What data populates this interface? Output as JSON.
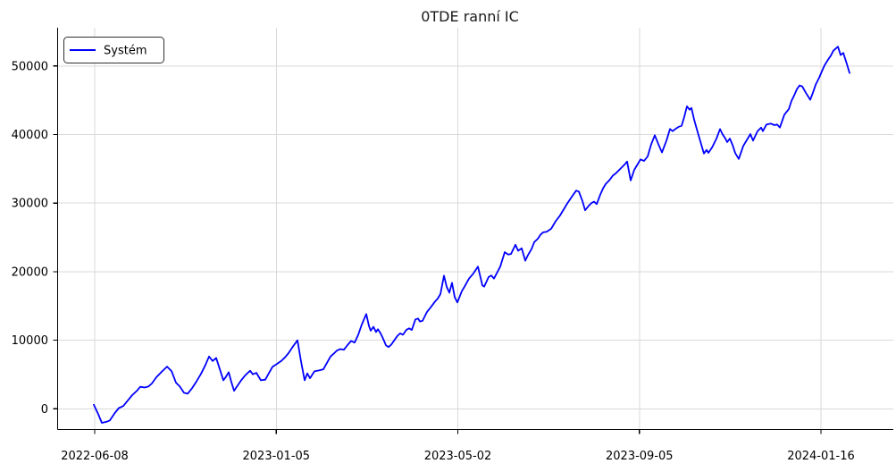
{
  "chart_data": {
    "type": "line",
    "title": "0TDE ranní IC",
    "grid": true,
    "background_color": "#ffffff",
    "gridline_color": "#d9d9d9",
    "spine_color": "#000000",
    "legend": {
      "entries": [
        "Systém"
      ],
      "position": "upper left"
    },
    "x_axis": {
      "tick_labels": [
        "2022-06-08",
        "2023-01-05",
        "2023-05-02",
        "2023-09-05",
        "2024-01-16"
      ],
      "note": "equity curve over trade sequence; x of each point is horizontal screenshot pixel position, ticks evenly spaced"
    },
    "y_axis": {
      "ticks": [
        0,
        10000,
        20000,
        30000,
        40000,
        50000
      ],
      "tick_labels": [
        "0",
        "10000",
        "20000",
        "30000",
        "40000",
        "50000"
      ]
    },
    "ylim": [
      -3000,
      55600
    ],
    "series": [
      {
        "name": "Systém",
        "color": "#0000ff",
        "points": [
          [
            105,
            590
          ],
          [
            110,
            -800
          ],
          [
            114,
            -2050
          ],
          [
            119,
            -1900
          ],
          [
            123,
            -1700
          ],
          [
            128,
            -700
          ],
          [
            133,
            100
          ],
          [
            138,
            400
          ],
          [
            143,
            1200
          ],
          [
            148,
            2000
          ],
          [
            153,
            2600
          ],
          [
            157,
            3210
          ],
          [
            162,
            3100
          ],
          [
            166,
            3250
          ],
          [
            170,
            3690
          ],
          [
            175,
            4600
          ],
          [
            181,
            5400
          ],
          [
            187,
            6150
          ],
          [
            192,
            5500
          ],
          [
            197,
            3810
          ],
          [
            201,
            3300
          ],
          [
            206,
            2340
          ],
          [
            210,
            2210
          ],
          [
            215,
            3000
          ],
          [
            220,
            4000
          ],
          [
            225,
            5100
          ],
          [
            230,
            6400
          ],
          [
            234,
            7630
          ],
          [
            238,
            6980
          ],
          [
            242,
            7410
          ],
          [
            246,
            5800
          ],
          [
            250,
            4160
          ],
          [
            253,
            4680
          ],
          [
            256,
            5330
          ],
          [
            259,
            3900
          ],
          [
            262,
            2640
          ],
          [
            266,
            3400
          ],
          [
            270,
            4160
          ],
          [
            274,
            4810
          ],
          [
            280,
            5550
          ],
          [
            283,
            5030
          ],
          [
            287,
            5240
          ],
          [
            292,
            4160
          ],
          [
            297,
            4250
          ],
          [
            301,
            5200
          ],
          [
            305,
            6110
          ],
          [
            310,
            6540
          ],
          [
            315,
            7000
          ],
          [
            319,
            7500
          ],
          [
            323,
            8120
          ],
          [
            328,
            9100
          ],
          [
            333,
            9990
          ],
          [
            337,
            6900
          ],
          [
            341,
            4160
          ],
          [
            344,
            5160
          ],
          [
            347,
            4460
          ],
          [
            352,
            5460
          ],
          [
            357,
            5600
          ],
          [
            362,
            5760
          ],
          [
            366,
            6700
          ],
          [
            370,
            7630
          ],
          [
            374,
            8100
          ],
          [
            377,
            8490
          ],
          [
            381,
            8710
          ],
          [
            385,
            8620
          ],
          [
            389,
            9300
          ],
          [
            393,
            9900
          ],
          [
            397,
            9660
          ],
          [
            401,
            10800
          ],
          [
            405,
            12300
          ],
          [
            410,
            13820
          ],
          [
            413,
            12100
          ],
          [
            415,
            11400
          ],
          [
            418,
            11960
          ],
          [
            421,
            11200
          ],
          [
            423,
            11610
          ],
          [
            426,
            11010
          ],
          [
            429,
            10200
          ],
          [
            432,
            9270
          ],
          [
            435,
            9010
          ],
          [
            438,
            9360
          ],
          [
            442,
            10100
          ],
          [
            445,
            10660
          ],
          [
            448,
            11010
          ],
          [
            451,
            10800
          ],
          [
            455,
            11530
          ],
          [
            458,
            11740
          ],
          [
            461,
            11500
          ],
          [
            465,
            13040
          ],
          [
            468,
            13170
          ],
          [
            470,
            12740
          ],
          [
            473,
            12830
          ],
          [
            478,
            14130
          ],
          [
            482,
            14780
          ],
          [
            487,
            15650
          ],
          [
            490,
            16080
          ],
          [
            493,
            16730
          ],
          [
            497,
            19410
          ],
          [
            500,
            17810
          ],
          [
            503,
            16940
          ],
          [
            506,
            18370
          ],
          [
            509,
            16300
          ],
          [
            512,
            15510
          ],
          [
            517,
            17160
          ],
          [
            520,
            17810
          ],
          [
            525,
            18980
          ],
          [
            530,
            19760
          ],
          [
            535,
            20740
          ],
          [
            540,
            18000
          ],
          [
            542,
            17830
          ],
          [
            547,
            19220
          ],
          [
            550,
            19440
          ],
          [
            553,
            19000
          ],
          [
            560,
            20740
          ],
          [
            565,
            22840
          ],
          [
            569,
            22500
          ],
          [
            572,
            22580
          ],
          [
            577,
            23920
          ],
          [
            580,
            23050
          ],
          [
            584,
            23400
          ],
          [
            588,
            21600
          ],
          [
            591,
            22410
          ],
          [
            595,
            23300
          ],
          [
            598,
            24310
          ],
          [
            602,
            24800
          ],
          [
            605,
            25390
          ],
          [
            608,
            25740
          ],
          [
            612,
            25830
          ],
          [
            617,
            26260
          ],
          [
            622,
            27350
          ],
          [
            627,
            28220
          ],
          [
            632,
            29300
          ],
          [
            635,
            29950
          ],
          [
            640,
            30900
          ],
          [
            645,
            31830
          ],
          [
            648,
            31690
          ],
          [
            652,
            30300
          ],
          [
            655,
            28960
          ],
          [
            659,
            29600
          ],
          [
            662,
            30000
          ],
          [
            665,
            30210
          ],
          [
            668,
            29860
          ],
          [
            672,
            31260
          ],
          [
            675,
            32130
          ],
          [
            678,
            32780
          ],
          [
            682,
            33320
          ],
          [
            686,
            34000
          ],
          [
            690,
            34420
          ],
          [
            695,
            35070
          ],
          [
            699,
            35600
          ],
          [
            702,
            36070
          ],
          [
            706,
            33300
          ],
          [
            710,
            34850
          ],
          [
            713,
            35510
          ],
          [
            717,
            36380
          ],
          [
            721,
            36160
          ],
          [
            725,
            36810
          ],
          [
            729,
            38600
          ],
          [
            733,
            39900
          ],
          [
            737,
            38600
          ],
          [
            741,
            37400
          ],
          [
            746,
            39100
          ],
          [
            750,
            40810
          ],
          [
            753,
            40500
          ],
          [
            757,
            40900
          ],
          [
            760,
            41150
          ],
          [
            763,
            41280
          ],
          [
            766,
            42600
          ],
          [
            769,
            44110
          ],
          [
            772,
            43630
          ],
          [
            774,
            43890
          ],
          [
            777,
            42200
          ],
          [
            780,
            40800
          ],
          [
            785,
            38550
          ],
          [
            788,
            37240
          ],
          [
            791,
            37760
          ],
          [
            793,
            37330
          ],
          [
            797,
            38100
          ],
          [
            802,
            39400
          ],
          [
            806,
            40800
          ],
          [
            809,
            40000
          ],
          [
            812,
            39420
          ],
          [
            814,
            38900
          ],
          [
            817,
            39420
          ],
          [
            820,
            38500
          ],
          [
            823,
            37300
          ],
          [
            827,
            36450
          ],
          [
            832,
            38330
          ],
          [
            837,
            39420
          ],
          [
            840,
            40070
          ],
          [
            843,
            39120
          ],
          [
            848,
            40500
          ],
          [
            852,
            41020
          ],
          [
            854,
            40500
          ],
          [
            858,
            41460
          ],
          [
            863,
            41590
          ],
          [
            867,
            41370
          ],
          [
            870,
            41460
          ],
          [
            873,
            41020
          ],
          [
            878,
            42900
          ],
          [
            883,
            43700
          ],
          [
            886,
            44900
          ],
          [
            889,
            45700
          ],
          [
            892,
            46600
          ],
          [
            895,
            47160
          ],
          [
            898,
            47030
          ],
          [
            902,
            46100
          ],
          [
            907,
            45070
          ],
          [
            910,
            46100
          ],
          [
            913,
            47250
          ],
          [
            917,
            48300
          ],
          [
            920,
            49210
          ],
          [
            923,
            50100
          ],
          [
            927,
            50940
          ],
          [
            930,
            51500
          ],
          [
            933,
            52250
          ],
          [
            938,
            52820
          ],
          [
            941,
            51600
          ],
          [
            944,
            51910
          ],
          [
            948,
            50290
          ],
          [
            951,
            48990
          ]
        ]
      }
    ]
  }
}
